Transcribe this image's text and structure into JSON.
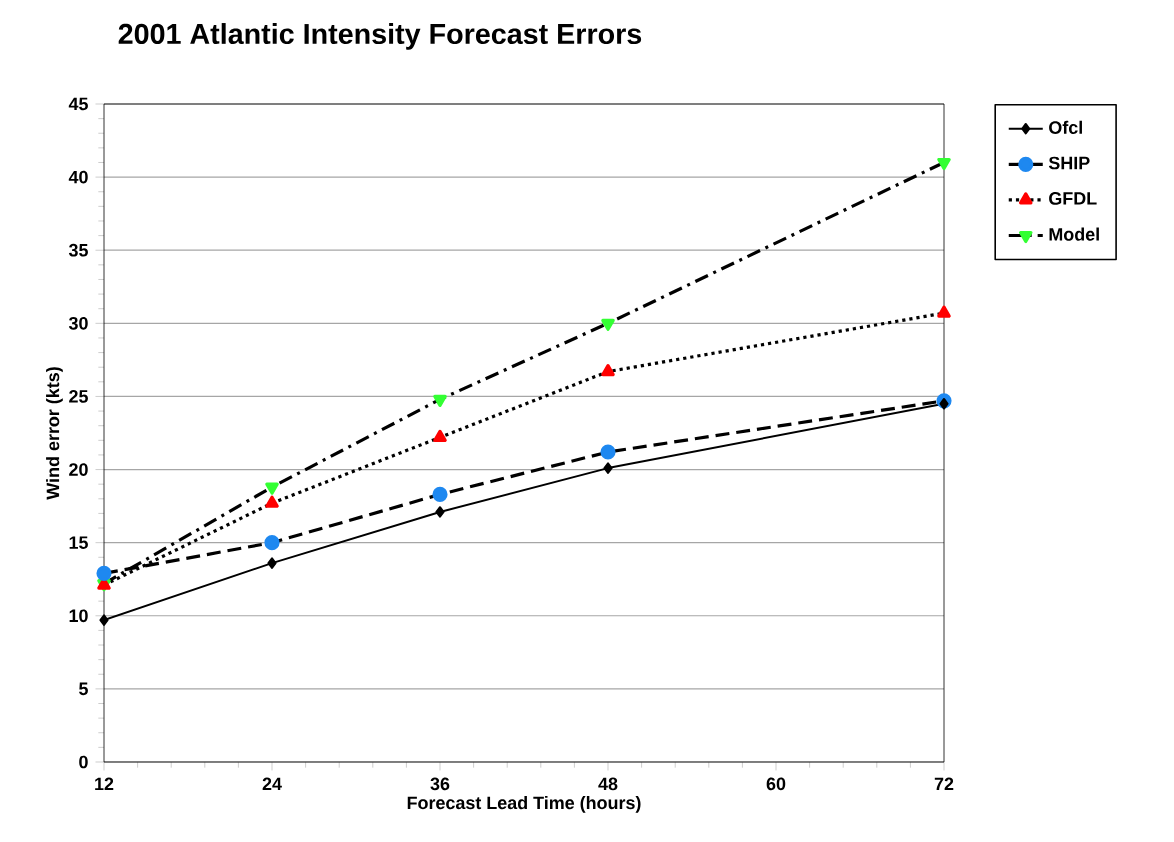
{
  "chart_data": {
    "type": "line",
    "title": "2001 Atlantic Intensity Forecast Errors",
    "xlabel": "Forecast Lead Time (hours)",
    "ylabel": "Wind error (kts)",
    "x": [
      12,
      24,
      36,
      48,
      72
    ],
    "series": [
      {
        "name": "Ofcl",
        "color": "#000000",
        "marker": "diamond",
        "line_style": "solid",
        "values": [
          9.7,
          13.6,
          17.1,
          20.1,
          24.5
        ]
      },
      {
        "name": "SHIP",
        "color": "#1e88f0",
        "marker": "circle",
        "line_style": "dashed",
        "values": [
          12.9,
          15.0,
          18.3,
          21.2,
          24.7
        ]
      },
      {
        "name": "GFDL",
        "color": "#ff0000",
        "marker": "triangle",
        "line_style": "dotted",
        "values": [
          12.1,
          17.7,
          22.2,
          26.7,
          30.7
        ]
      },
      {
        "name": "Model",
        "color": "#33ff33",
        "marker": "triangle-down",
        "line_style": "dashdot",
        "values": [
          12.2,
          18.8,
          24.8,
          30.0,
          41.0
        ]
      }
    ],
    "xlim": [
      12,
      72
    ],
    "xticks": [
      12,
      24,
      36,
      48,
      60,
      72
    ],
    "ylim": [
      0,
      45
    ],
    "yticks": [
      0,
      5,
      10,
      15,
      20,
      25,
      30,
      35,
      40,
      45
    ],
    "grid": "y",
    "legend": "top right"
  }
}
